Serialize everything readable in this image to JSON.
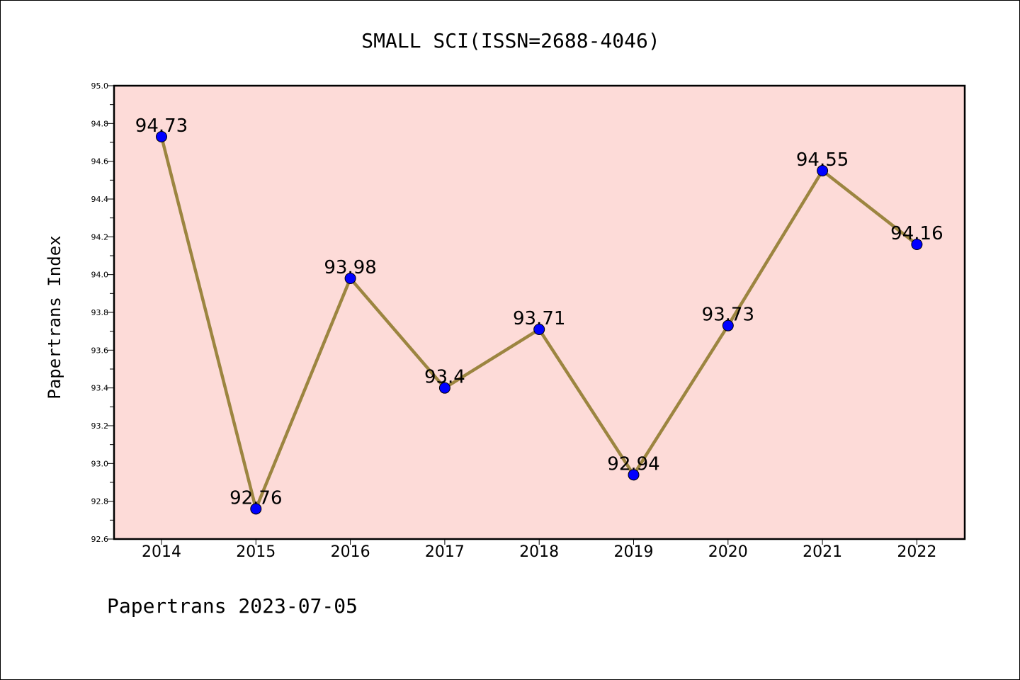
{
  "chart_data": {
    "type": "line",
    "title": "SMALL SCI(ISSN=2688-4046)",
    "ylabel": "Papertrans Index",
    "xlabel": "",
    "categories": [
      "2014",
      "2015",
      "2016",
      "2017",
      "2018",
      "2019",
      "2020",
      "2021",
      "2022"
    ],
    "values": [
      94.73,
      92.76,
      93.98,
      93.4,
      93.71,
      92.94,
      93.73,
      94.55,
      94.16
    ],
    "data_labels": [
      "94.73",
      "92.76",
      "93.98",
      "93.4",
      "93.71",
      "92.94",
      "93.73",
      "94.55",
      "94.16"
    ],
    "ylim": [
      92.6,
      95.0
    ],
    "yticks": [
      "92.6",
      "92.8",
      "93.0",
      "93.2",
      "93.4",
      "93.6",
      "93.8",
      "94.0",
      "94.2",
      "94.4",
      "94.6",
      "94.8",
      "95.0"
    ],
    "grid": false,
    "legend": "none",
    "colors": {
      "plot_background": "#fddbd8",
      "line": "#9c8540",
      "marker": "#0000ff"
    }
  },
  "footer": {
    "text": "Papertrans 2023-07-05"
  }
}
